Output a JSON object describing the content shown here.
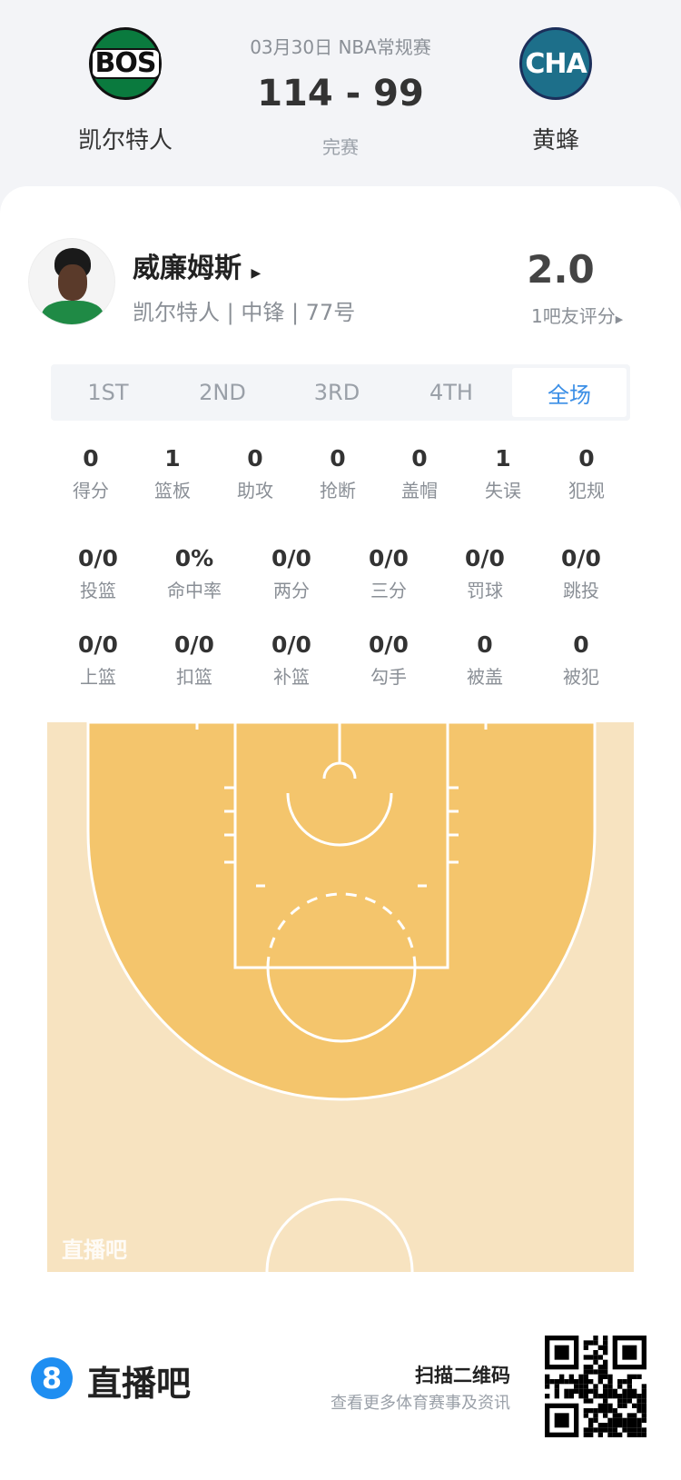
{
  "game": {
    "date_league": "03月30日 NBA常规赛",
    "score": "114 - 99",
    "status": "完赛",
    "home": {
      "abbr": "BOS",
      "name": "凯尔特人"
    },
    "away": {
      "abbr": "CHA",
      "name": "黄蜂"
    }
  },
  "player": {
    "name": "威廉姆斯",
    "info": "凯尔特人 | 中锋 | 77号",
    "rating": "2.0",
    "rating_label": "1吧友评分"
  },
  "tabs": [
    {
      "label": "1ST"
    },
    {
      "label": "2ND"
    },
    {
      "label": "3RD"
    },
    {
      "label": "4TH"
    },
    {
      "label": "全场",
      "active": true
    }
  ],
  "stats_row1": [
    {
      "v": "0",
      "l": "得分"
    },
    {
      "v": "1",
      "l": "篮板"
    },
    {
      "v": "0",
      "l": "助攻"
    },
    {
      "v": "0",
      "l": "抢断"
    },
    {
      "v": "0",
      "l": "盖帽"
    },
    {
      "v": "1",
      "l": "失误"
    },
    {
      "v": "0",
      "l": "犯规"
    }
  ],
  "stats_row2": [
    {
      "v": "0/0",
      "l": "投篮"
    },
    {
      "v": "0%",
      "l": "命中率"
    },
    {
      "v": "0/0",
      "l": "两分"
    },
    {
      "v": "0/0",
      "l": "三分"
    },
    {
      "v": "0/0",
      "l": "罚球"
    },
    {
      "v": "0/0",
      "l": "跳投"
    }
  ],
  "stats_row3": [
    {
      "v": "0/0",
      "l": "上篮"
    },
    {
      "v": "0/0",
      "l": "扣篮"
    },
    {
      "v": "0/0",
      "l": "补篮"
    },
    {
      "v": "0/0",
      "l": "勾手"
    },
    {
      "v": "0",
      "l": "被盖"
    },
    {
      "v": "0",
      "l": "被犯"
    }
  ],
  "court": {
    "watermark": "直播吧",
    "colors": {
      "outer": "#f7e3c0",
      "inner": "#f4c56c"
    }
  },
  "footer": {
    "brand": "直播吧",
    "brand_num": "8",
    "scan": "扫描二维码",
    "sub": "查看更多体育赛事及资讯"
  },
  "colors": {
    "accent": "#3a8ee6"
  }
}
